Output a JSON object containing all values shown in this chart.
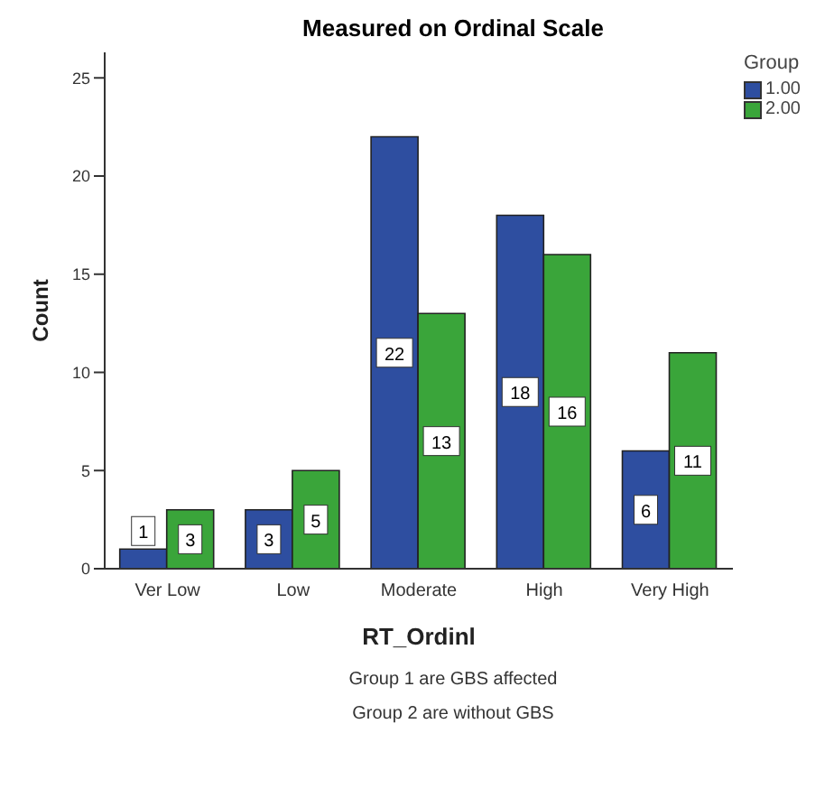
{
  "chart_data": {
    "type": "bar",
    "title": "Measured on Ordinal Scale",
    "xlabel": "RT_Ordinl",
    "ylabel": "Count",
    "legend_title": "Group",
    "categories": [
      "Ver Low",
      "Low",
      "Moderate",
      "High",
      "Very High"
    ],
    "series": [
      {
        "name": "1.00",
        "color": "#2e4ea0",
        "values": [
          1,
          3,
          22,
          18,
          6
        ]
      },
      {
        "name": "2.00",
        "color": "#3aa53a",
        "values": [
          3,
          5,
          13,
          16,
          11
        ]
      }
    ],
    "ylim": [
      0,
      26.3
    ],
    "yticks": [
      0,
      5,
      10,
      15,
      20,
      25
    ],
    "data_labels": true,
    "legend": "top right",
    "grid": false,
    "annotations": [
      "Group 1 are GBS affected",
      "Group 2 are without GBS"
    ]
  }
}
